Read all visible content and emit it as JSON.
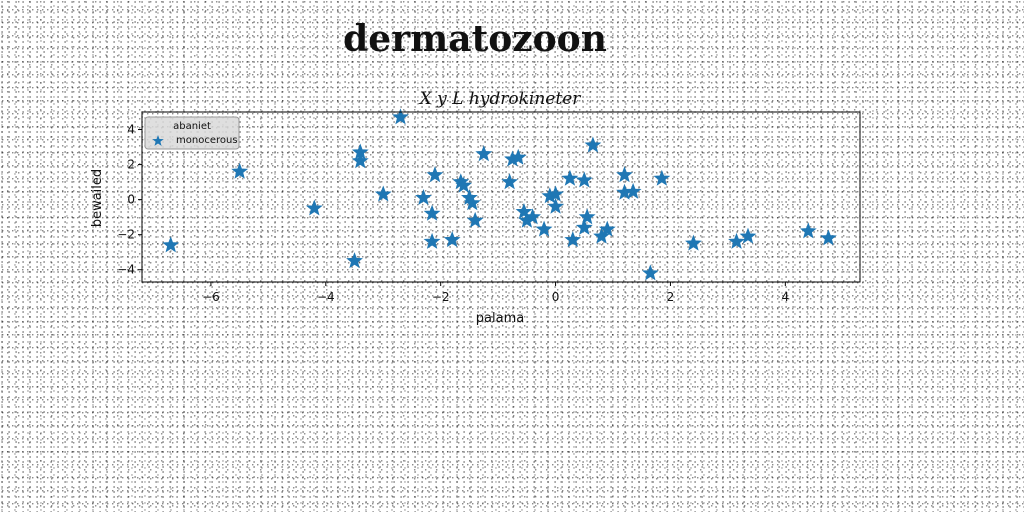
{
  "page_title": "dermatozoon",
  "chart_data": {
    "type": "scatter",
    "title": "X y L hydrokineter",
    "xlabel": "palama",
    "ylabel": "bewailed",
    "xlim": [
      -7.2,
      5.3
    ],
    "ylim": [
      -4.7,
      5.0
    ],
    "xticks": [
      -6,
      -4,
      -2,
      0,
      2,
      4
    ],
    "xtick_labels": [
      "−6",
      "−4",
      "−2",
      "0",
      "2",
      "4"
    ],
    "yticks": [
      -4,
      -2,
      0,
      2,
      4
    ],
    "ytick_labels": [
      "−4",
      "−2",
      "0",
      "2",
      "4"
    ],
    "grid": false,
    "legend": {
      "title": "abaniet",
      "placement": "top-left"
    },
    "marker": "star",
    "color": "#1f77b4",
    "series": [
      {
        "name": "monocerous",
        "points": [
          [
            -6.7,
            -2.6
          ],
          [
            -5.5,
            1.6
          ],
          [
            -4.2,
            -0.5
          ],
          [
            -3.5,
            -3.5
          ],
          [
            -3.4,
            2.7
          ],
          [
            -3.4,
            2.2
          ],
          [
            -3.0,
            0.3
          ],
          [
            -2.7,
            4.7
          ],
          [
            -2.3,
            0.1
          ],
          [
            -2.15,
            -0.8
          ],
          [
            -2.1,
            1.4
          ],
          [
            -2.15,
            -2.4
          ],
          [
            -1.8,
            -2.3
          ],
          [
            -1.65,
            1.0
          ],
          [
            -1.6,
            0.8
          ],
          [
            -1.5,
            0.1
          ],
          [
            -1.45,
            -0.2
          ],
          [
            -1.4,
            -1.2
          ],
          [
            -1.25,
            2.6
          ],
          [
            -0.8,
            1.0
          ],
          [
            -0.75,
            2.3
          ],
          [
            -0.65,
            2.4
          ],
          [
            -0.55,
            -0.7
          ],
          [
            -0.5,
            -1.2
          ],
          [
            -0.4,
            -1.0
          ],
          [
            -0.2,
            -1.7
          ],
          [
            -0.1,
            0.2
          ],
          [
            0.0,
            0.3
          ],
          [
            0.0,
            -0.4
          ],
          [
            0.25,
            1.2
          ],
          [
            0.3,
            -2.3
          ],
          [
            0.5,
            1.1
          ],
          [
            0.5,
            -1.6
          ],
          [
            0.55,
            -1.0
          ],
          [
            0.65,
            3.1
          ],
          [
            0.8,
            -2.1
          ],
          [
            0.9,
            -1.7
          ],
          [
            1.2,
            1.4
          ],
          [
            1.2,
            0.4
          ],
          [
            1.35,
            0.45
          ],
          [
            1.65,
            -4.2
          ],
          [
            1.85,
            1.2
          ],
          [
            2.4,
            -2.5
          ],
          [
            3.15,
            -2.4
          ],
          [
            3.35,
            -2.1
          ],
          [
            4.4,
            -1.8
          ],
          [
            4.75,
            -2.2
          ]
        ]
      }
    ]
  }
}
